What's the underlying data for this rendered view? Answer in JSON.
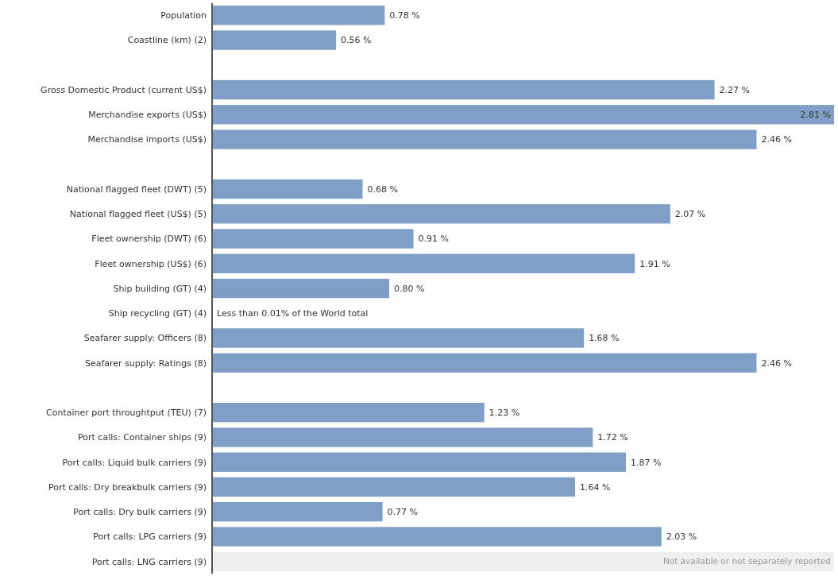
{
  "chart_data": {
    "type": "bar",
    "orientation": "horizontal",
    "color": "#7f9fc6",
    "categories": [
      "Population",
      "Coastline (km) (2)",
      null,
      "Gross Domestic Product (current US$)",
      "Merchandise exports (US$)",
      "Merchandise imports (US$)",
      null,
      "National flagged fleet (DWT) (5)",
      "National flagged fleet (US$) (5)",
      "Fleet ownership (DWT) (6)",
      "Fleet ownership (US$) (6)",
      "Ship building (GT) (4)",
      "Ship recycling (GT) (4)",
      "Seafarer supply: Officers (8)",
      "Seafarer supply: Ratings (8)",
      null,
      "Container port throughtput (TEU) (7)",
      "Port calls: Container ships (9)",
      "Port calls: Liquid bulk carriers (9)",
      "Port calls: Dry breakbulk carriers (9)",
      "Port calls: Dry bulk carriers (9)",
      "Port calls: LPG carriers (9)",
      "Port calls: LNG carriers (9)"
    ],
    "values": [
      0.78,
      0.56,
      null,
      2.27,
      2.81,
      2.46,
      null,
      0.68,
      2.07,
      0.91,
      1.91,
      0.8,
      0,
      1.68,
      2.46,
      null,
      1.23,
      1.72,
      1.87,
      1.64,
      0.77,
      2.03,
      null
    ],
    "value_labels": [
      "0.78 %",
      "0.56 %",
      null,
      "2.27 %",
      "2.81 %",
      "2.46 %",
      null,
      "0.68 %",
      "2.07 %",
      "0.91 %",
      "1.91 %",
      "0.80 %",
      "Less than 0.01% of the World total",
      "1.68 %",
      "2.46 %",
      null,
      "1.23 %",
      "1.72 %",
      "1.87 %",
      "1.64 %",
      "0.77 %",
      "2.03 %",
      null
    ],
    "bands": [
      {
        "axis": "y",
        "from": "Port calls: LNG carriers (9)",
        "to": "Port calls: LNG carriers (9)",
        "label": "Not available or not separately reported",
        "color": "#efefef"
      }
    ]
  }
}
